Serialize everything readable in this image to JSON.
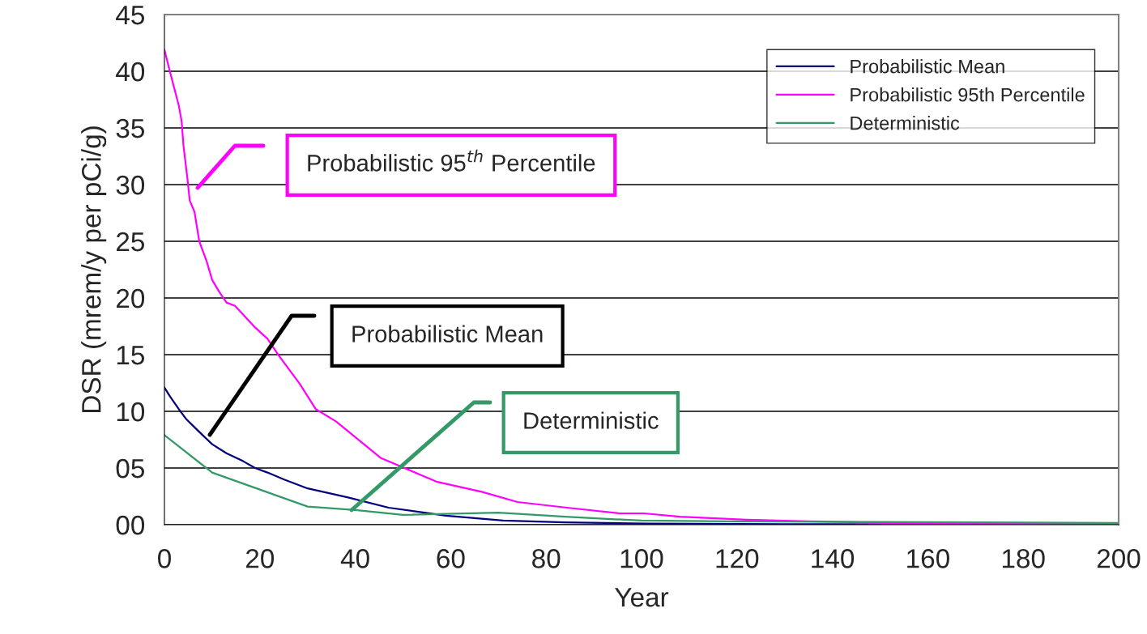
{
  "chart_data": {
    "type": "line",
    "xlabel": "Year",
    "ylabel": "DSR (mrem/y per pCi/g)",
    "xlim": [
      0,
      200
    ],
    "xticks": [
      0,
      20,
      40,
      60,
      80,
      100,
      120,
      140,
      160,
      180,
      200
    ],
    "ylim": [
      0,
      45
    ],
    "yticks": [
      {
        "value": 0,
        "label": "00"
      },
      {
        "value": 5,
        "label": "05"
      },
      10,
      15,
      20,
      25,
      30,
      35,
      40,
      45
    ],
    "grid": "y",
    "legend": "top right",
    "series": [
      {
        "name": "Probabilistic Mean",
        "color": "#000080",
        "x": [
          0,
          1.2,
          3,
          4.6,
          6.3,
          8,
          10,
          13,
          16.5,
          19,
          21.6,
          25,
          30,
          38.5,
          47,
          59,
          71,
          84,
          101,
          130,
          160,
          200
        ],
        "values": [
          12.1,
          11.3,
          10.2,
          9.3,
          8.6,
          7.9,
          7.1,
          6.3,
          5.6,
          5,
          4.6,
          4,
          3.2,
          2.4,
          1.5,
          0.8,
          0.36,
          0.2,
          0.1,
          0.05,
          0.03,
          0.02
        ]
      },
      {
        "name": "Probabilistic 95th Percentile",
        "color": "#ff00ff",
        "x": [
          0,
          1.2,
          2,
          3,
          3.6,
          4,
          4.8,
          5.3,
          6.3,
          7.3,
          8.8,
          10,
          11.4,
          13,
          14.8,
          19,
          21.6,
          24,
          28.4,
          31.7,
          36,
          45.3,
          57,
          66.5,
          74,
          84.4,
          95.4,
          100.5,
          108,
          122,
          135,
          152,
          200
        ],
        "values": [
          41.9,
          39.9,
          38.6,
          37,
          35.6,
          33.4,
          30.6,
          28.6,
          27.6,
          25,
          23.3,
          21.6,
          20.6,
          19.6,
          19.3,
          17.4,
          16.4,
          14.9,
          12.4,
          10.2,
          9.1,
          5.9,
          3.8,
          2.9,
          2,
          1.5,
          1,
          1,
          0.7,
          0.43,
          0.3,
          0.15,
          0
        ]
      },
      {
        "name": "Deterministic",
        "color": "#339966",
        "x": [
          0,
          10,
          30,
          40,
          50,
          70,
          84,
          100,
          118,
          200
        ],
        "values": [
          7.9,
          4.6,
          1.6,
          1.3,
          0.86,
          1.07,
          0.7,
          0.36,
          0.3,
          0.15
        ]
      }
    ],
    "annotations": [
      "Probabilistic Mean",
      "Probabilistic 95$^{th}$ Percentile",
      "Deterministic"
    ]
  }
}
